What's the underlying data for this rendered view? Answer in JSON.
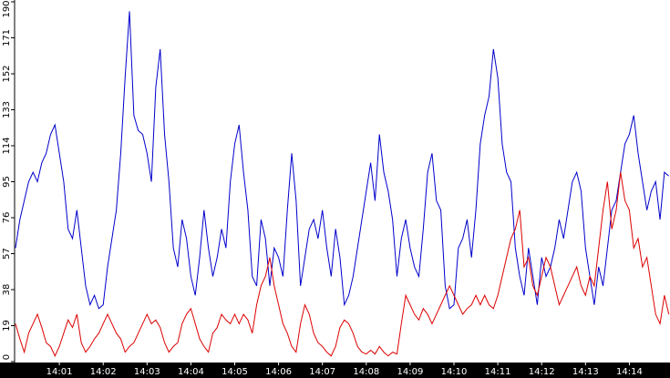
{
  "chart_data": {
    "type": "line",
    "categories": [
      null,
      null,
      null,
      null,
      null,
      null,
      null,
      null,
      null,
      null,
      "14:01",
      null,
      null,
      null,
      null,
      null,
      null,
      null,
      null,
      null,
      "14:02",
      null,
      null,
      null,
      null,
      null,
      null,
      null,
      null,
      null,
      "14:03",
      null,
      null,
      null,
      null,
      null,
      null,
      null,
      null,
      null,
      "14:04",
      null,
      null,
      null,
      null,
      null,
      null,
      null,
      null,
      null,
      "14:05",
      null,
      null,
      null,
      null,
      null,
      null,
      null,
      null,
      null,
      "14:06",
      null,
      null,
      null,
      null,
      null,
      null,
      null,
      null,
      null,
      "14:07",
      null,
      null,
      null,
      null,
      null,
      null,
      null,
      null,
      null,
      "14:08",
      null,
      null,
      null,
      null,
      null,
      null,
      null,
      null,
      null,
      "14:09",
      null,
      null,
      null,
      null,
      null,
      null,
      null,
      null,
      null,
      "14:10",
      null,
      null,
      null,
      null,
      null,
      null,
      null,
      null,
      null,
      "14:11",
      null,
      null,
      null,
      null,
      null,
      null,
      null,
      null,
      null,
      "14:12",
      null,
      null,
      null,
      null,
      null,
      null,
      null,
      null,
      null,
      "14:13",
      null,
      null,
      null,
      null,
      null,
      null,
      null,
      null,
      null,
      "14:14",
      null,
      null,
      null,
      null,
      null,
      null,
      null,
      null,
      null
    ],
    "series": [
      {
        "color": "#0000cc",
        "values": [
          60,
          75,
          85,
          95,
          100,
          95,
          105,
          110,
          120,
          125,
          110,
          95,
          70,
          65,
          80,
          60,
          40,
          30,
          35,
          28,
          30,
          50,
          65,
          80,
          110,
          150,
          185,
          130,
          122,
          120,
          110,
          95,
          145,
          165,
          120,
          95,
          60,
          50,
          75,
          65,
          45,
          35,
          55,
          80,
          60,
          45,
          55,
          70,
          60,
          95,
          115,
          125,
          100,
          80,
          45,
          40,
          75,
          65,
          40,
          60,
          55,
          45,
          80,
          110,
          85,
          40,
          55,
          70,
          75,
          65,
          80,
          60,
          45,
          70,
          55,
          30,
          35,
          45,
          60,
          75,
          90,
          105,
          85,
          120,
          100,
          90,
          75,
          45,
          65,
          75,
          60,
          50,
          45,
          70,
          100,
          110,
          85,
          80,
          40,
          28,
          30,
          60,
          65,
          75,
          55,
          80,
          115,
          130,
          140,
          165,
          150,
          115,
          100,
          95,
          60,
          45,
          35,
          60,
          45,
          30,
          55,
          45,
          50,
          60,
          75,
          65,
          80,
          95,
          100,
          90,
          60,
          45,
          30,
          50,
          40,
          60,
          80,
          85,
          100,
          115,
          120,
          130,
          110,
          95,
          80,
          90,
          95,
          75,
          100,
          98
        ]
      },
      {
        "color": "#dd0000",
        "values": [
          20,
          12,
          5,
          15,
          20,
          25,
          18,
          10,
          8,
          3,
          8,
          15,
          22,
          18,
          25,
          10,
          5,
          8,
          12,
          15,
          20,
          25,
          20,
          15,
          12,
          5,
          8,
          10,
          15,
          20,
          25,
          20,
          22,
          18,
          10,
          5,
          8,
          10,
          20,
          25,
          28,
          20,
          12,
          8,
          5,
          15,
          18,
          25,
          22,
          20,
          25,
          20,
          25,
          22,
          15,
          30,
          40,
          45,
          55,
          40,
          30,
          20,
          15,
          8,
          5,
          20,
          30,
          25,
          15,
          10,
          8,
          5,
          3,
          8,
          18,
          22,
          20,
          15,
          8,
          5,
          4,
          6,
          4,
          8,
          5,
          3,
          5,
          4,
          20,
          35,
          30,
          25,
          22,
          28,
          25,
          20,
          25,
          30,
          35,
          40,
          35,
          30,
          25,
          28,
          30,
          35,
          30,
          35,
          30,
          28,
          35,
          45,
          55,
          65,
          70,
          80,
          50,
          55,
          40,
          35,
          45,
          55,
          50,
          40,
          30,
          35,
          40,
          45,
          50,
          40,
          35,
          45,
          40,
          60,
          80,
          95,
          70,
          80,
          100,
          85,
          80,
          60,
          65,
          50,
          55,
          40,
          25,
          20,
          35,
          25
        ]
      }
    ],
    "ylim": [
      0,
      190
    ],
    "yticks": [
      0,
      19,
      38,
      57,
      76,
      95,
      114,
      133,
      152,
      171,
      190
    ]
  }
}
